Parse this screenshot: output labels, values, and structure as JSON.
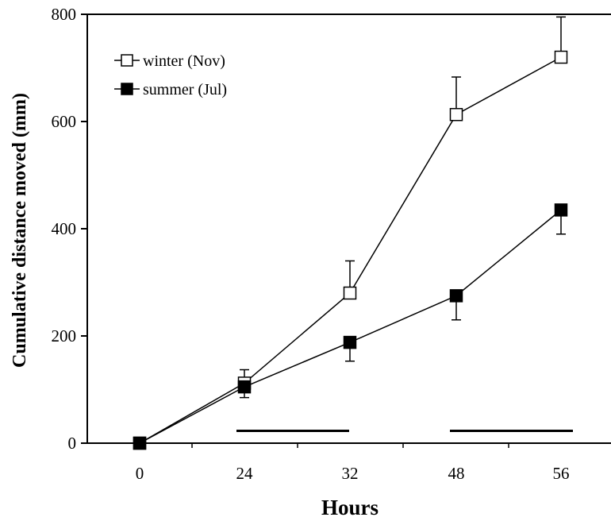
{
  "chart_data": {
    "type": "line",
    "title": "",
    "xlabel": "Hours",
    "ylabel": "Cumulative distance moved (mm)",
    "categories": [
      "0",
      "24",
      "32",
      "48",
      "56"
    ],
    "ylim": [
      0,
      800
    ],
    "yticks": [
      0,
      200,
      400,
      600,
      800
    ],
    "grid": false,
    "legend_position": "top-left",
    "series": [
      {
        "name": "winter (Nov)",
        "marker": "open-square",
        "values": [
          0,
          112,
          280,
          613,
          720
        ],
        "error": [
          0,
          25,
          60,
          70,
          75
        ]
      },
      {
        "name": "summer (Jul)",
        "marker": "filled-square",
        "values": [
          0,
          105,
          188,
          275,
          435
        ],
        "error": [
          0,
          20,
          35,
          45,
          45
        ]
      }
    ],
    "annotations": [
      {
        "type": "horizontal-bar",
        "from_category": "24",
        "to_category": "32",
        "y": 23
      },
      {
        "type": "horizontal-bar",
        "from_category": "48",
        "to_category": "56",
        "y": 23
      }
    ]
  }
}
